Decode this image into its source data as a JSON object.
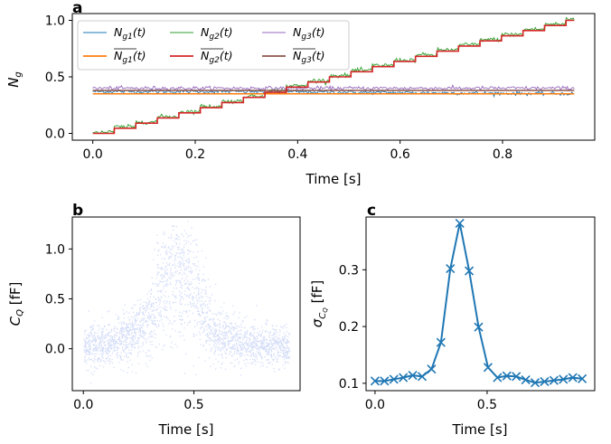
{
  "chart_data": [
    {
      "panel": "a",
      "type": "line",
      "xlabel": "Time [s]",
      "ylabel": "N_g",
      "xlim": [
        -0.04,
        0.98
      ],
      "ylim": [
        -0.06,
        1.06
      ],
      "xticks": [
        "0.0",
        "0.2",
        "0.4",
        "0.6",
        "0.8"
      ],
      "yticks": [
        "0.0",
        "0.5",
        "1.0"
      ],
      "legend_placement": "top-left",
      "step_width_s": 0.042,
      "series": [
        {
          "name": "N_g1(t)",
          "color": "#1f77b4",
          "style": "noisy",
          "values": [
            0.37,
            0.37,
            0.36,
            0.35
          ]
        },
        {
          "name": "N_g2(t)",
          "color": "#2ca02c",
          "style": "noisy-staircase",
          "start": 0.0,
          "end": 1.0
        },
        {
          "name": "N_g3(t)",
          "color": "#9467bd",
          "style": "noisy",
          "values": [
            0.4,
            0.4,
            0.4,
            0.4
          ]
        },
        {
          "name": "N̄_g1(t)",
          "color": "#ff7f0e",
          "style": "flat",
          "values": [
            0.35,
            0.35,
            0.35,
            0.35
          ]
        },
        {
          "name": "N̄_g2(t)",
          "color": "#d62728",
          "style": "staircase",
          "start": 0.0,
          "end": 1.0
        },
        {
          "name": "N̄_g3(t)",
          "color": "#8c564b",
          "style": "flat",
          "values": [
            0.38,
            0.38,
            0.38,
            0.38
          ]
        }
      ],
      "x_end": 0.94
    },
    {
      "panel": "b",
      "type": "scatter",
      "xlabel": "Time [s]",
      "ylabel": "C_Q [fF]",
      "xlim": [
        -0.05,
        0.98
      ],
      "ylim": [
        -0.42,
        1.32
      ],
      "xticks": [
        "0.0",
        "0.5"
      ],
      "yticks": [
        "0.0",
        "0.5",
        "1.0"
      ],
      "color": "#4169e1",
      "envelope": {
        "x": [
          0.0,
          0.1,
          0.2,
          0.3,
          0.35,
          0.4,
          0.45,
          0.5,
          0.55,
          0.6,
          0.7,
          0.8,
          0.93
        ],
        "center": [
          0.02,
          0.05,
          0.12,
          0.28,
          0.55,
          0.92,
          0.88,
          0.55,
          0.3,
          0.15,
          0.08,
          0.04,
          0.02
        ],
        "spread": [
          0.22,
          0.22,
          0.25,
          0.35,
          0.45,
          0.38,
          0.4,
          0.45,
          0.35,
          0.25,
          0.22,
          0.2,
          0.2
        ]
      }
    },
    {
      "panel": "c",
      "type": "line",
      "xlabel": "Time [s]",
      "ylabel": "σ_CQ [fF]",
      "xlim": [
        -0.04,
        0.98
      ],
      "ylim": [
        0.087,
        0.393
      ],
      "xticks": [
        "0.0",
        "0.5"
      ],
      "yticks": [
        "0.1",
        "0.2",
        "0.3"
      ],
      "marker": "x",
      "color": "#1f77b4",
      "x": [
        0.0,
        0.042,
        0.084,
        0.126,
        0.168,
        0.21,
        0.252,
        0.294,
        0.336,
        0.378,
        0.42,
        0.462,
        0.504,
        0.546,
        0.588,
        0.63,
        0.672,
        0.714,
        0.756,
        0.798,
        0.84,
        0.882,
        0.924
      ],
      "y": [
        0.104,
        0.104,
        0.107,
        0.11,
        0.114,
        0.112,
        0.125,
        0.172,
        0.302,
        0.382,
        0.298,
        0.199,
        0.128,
        0.11,
        0.113,
        0.112,
        0.106,
        0.101,
        0.103,
        0.105,
        0.107,
        0.11,
        0.108
      ]
    }
  ]
}
